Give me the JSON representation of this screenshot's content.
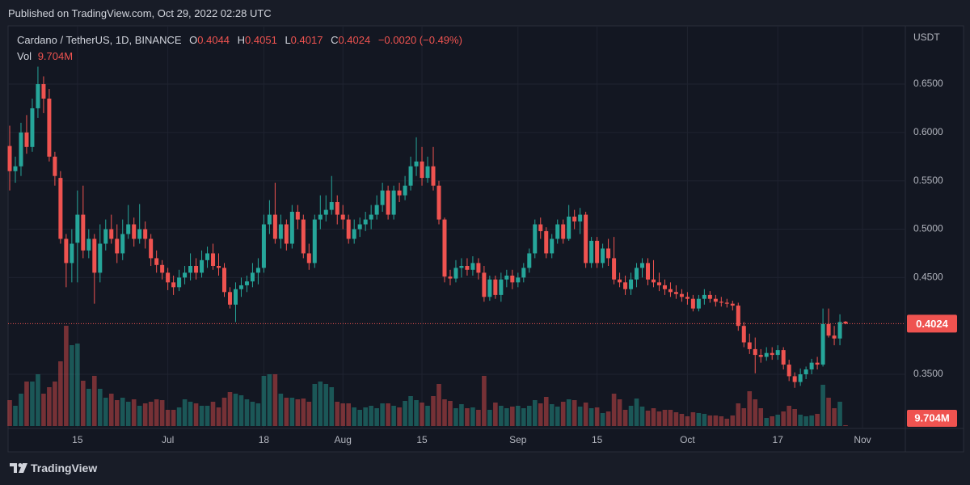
{
  "header": {
    "published": "Published on TradingView.com, Oct 29, 2022 02:28 UTC"
  },
  "footer": {
    "brand": "TradingView"
  },
  "chart_data": {
    "type": "candlestick",
    "title": "Cardano / TetherUS, 1D, BINANCE",
    "y_axis_unit": "USDT",
    "ohlc_labels": [
      "O",
      "H",
      "L",
      "C"
    ],
    "change": "−0.0020 (−0.49%)",
    "up_color": "#26a69a",
    "down_color": "#ef5350",
    "grid": true,
    "ylim": [
      0.2957,
      0.7102
    ],
    "yticks": [
      {
        "value": 0.35,
        "label": "0.3500"
      },
      {
        "value": 0.45,
        "label": "0.4500"
      },
      {
        "value": 0.5,
        "label": "0.5000"
      },
      {
        "value": 0.55,
        "label": "0.5500"
      },
      {
        "value": 0.6,
        "label": "0.6000"
      },
      {
        "value": 0.65,
        "label": "0.6500"
      }
    ],
    "categories": [
      null,
      null,
      null,
      null,
      null,
      null,
      null,
      null,
      null,
      null,
      null,
      null,
      "15",
      null,
      null,
      null,
      null,
      null,
      null,
      null,
      null,
      null,
      null,
      null,
      null,
      null,
      null,
      null,
      "Jul",
      null,
      null,
      null,
      null,
      null,
      null,
      null,
      null,
      null,
      null,
      null,
      null,
      null,
      null,
      null,
      null,
      "18",
      null,
      null,
      null,
      null,
      null,
      null,
      null,
      null,
      null,
      null,
      null,
      null,
      null,
      "Aug",
      null,
      null,
      null,
      null,
      null,
      null,
      null,
      null,
      null,
      null,
      null,
      null,
      null,
      "15",
      null,
      null,
      null,
      null,
      null,
      null,
      null,
      null,
      null,
      null,
      null,
      null,
      null,
      null,
      null,
      null,
      "Sep",
      null,
      null,
      null,
      null,
      null,
      null,
      null,
      null,
      null,
      null,
      null,
      null,
      null,
      "15",
      null,
      null,
      null,
      null,
      null,
      null,
      null,
      null,
      null,
      null,
      null,
      null,
      null,
      null,
      null,
      "Oct",
      null,
      null,
      null,
      null,
      null,
      null,
      null,
      null,
      null,
      null,
      null,
      null,
      null,
      null,
      null,
      "17",
      null,
      null,
      null,
      null,
      null,
      null,
      null,
      null,
      null,
      null,
      null,
      null,
      null,
      null,
      "Nov"
    ],
    "open": [
      0.586,
      0.56,
      0.565,
      0.6,
      0.585,
      0.625,
      0.65,
      0.635,
      0.575,
      0.553,
      0.49,
      0.465,
      0.486,
      0.515,
      0.478,
      0.49,
      0.455,
      0.485,
      0.5,
      0.49,
      0.475,
      0.495,
      0.505,
      0.49,
      0.5,
      0.49,
      0.47,
      0.463,
      0.455,
      0.445,
      0.44,
      0.45,
      0.455,
      0.462,
      0.455,
      0.468,
      0.475,
      0.462,
      0.46,
      0.435,
      0.422,
      0.438,
      0.442,
      0.446,
      0.455,
      0.46,
      0.505,
      0.515,
      0.49,
      0.505,
      0.485,
      0.518,
      0.51,
      0.475,
      0.465,
      0.51,
      0.515,
      0.52,
      0.528,
      0.515,
      0.51,
      0.49,
      0.5,
      0.505,
      0.51,
      0.515,
      0.525,
      0.54,
      0.515,
      0.54,
      0.535,
      0.545,
      0.565,
      0.57,
      0.553,
      0.565,
      0.545,
      0.51,
      0.451,
      0.449,
      0.46,
      0.462,
      0.458,
      0.465,
      0.455,
      0.43,
      0.448,
      0.432,
      0.448,
      0.452,
      0.445,
      0.45,
      0.46,
      0.475,
      0.505,
      0.498,
      0.475,
      0.49,
      0.505,
      0.49,
      0.513,
      0.508,
      0.515,
      0.465,
      0.488,
      0.465,
      0.48,
      0.47,
      0.448,
      0.445,
      0.438,
      0.448,
      0.46,
      0.465,
      0.448,
      0.445,
      0.442,
      0.438,
      0.435,
      0.433,
      0.43,
      0.428,
      0.418,
      0.428,
      0.432,
      0.428,
      0.425,
      0.424,
      0.423,
      0.421,
      0.4,
      0.383,
      0.376,
      0.37,
      0.368,
      0.372,
      0.37,
      0.375,
      0.36,
      0.348,
      0.342,
      0.35,
      0.355,
      0.362,
      0.36,
      0.402,
      0.39,
      0.387,
      0.4044,
      null,
      null,
      null
    ],
    "high": [
      0.607,
      0.575,
      0.61,
      0.618,
      0.635,
      0.668,
      0.658,
      0.645,
      0.58,
      0.56,
      0.495,
      0.5,
      0.54,
      0.545,
      0.5,
      0.495,
      0.505,
      0.51,
      0.515,
      0.505,
      0.51,
      0.525,
      0.512,
      0.526,
      0.508,
      0.495,
      0.478,
      0.468,
      0.46,
      0.452,
      0.458,
      0.462,
      0.475,
      0.47,
      0.478,
      0.482,
      0.485,
      0.475,
      0.465,
      0.44,
      0.445,
      0.45,
      0.452,
      0.465,
      0.47,
      0.515,
      0.53,
      0.548,
      0.515,
      0.51,
      0.525,
      0.525,
      0.515,
      0.485,
      0.515,
      0.535,
      0.535,
      0.555,
      0.535,
      0.525,
      0.515,
      0.51,
      0.512,
      0.518,
      0.525,
      0.535,
      0.548,
      0.545,
      0.545,
      0.548,
      0.555,
      0.575,
      0.595,
      0.585,
      0.575,
      0.585,
      0.55,
      0.512,
      0.458,
      0.468,
      0.47,
      0.47,
      0.472,
      0.47,
      0.462,
      0.452,
      0.452,
      0.455,
      0.458,
      0.458,
      0.455,
      0.465,
      0.48,
      0.51,
      0.512,
      0.502,
      0.495,
      0.51,
      0.51,
      0.525,
      0.52,
      0.522,
      0.518,
      0.492,
      0.492,
      0.485,
      0.49,
      0.492,
      0.455,
      0.452,
      0.455,
      0.465,
      0.47,
      0.47,
      0.468,
      0.455,
      0.448,
      0.445,
      0.442,
      0.438,
      0.435,
      0.432,
      0.432,
      0.438,
      0.436,
      0.432,
      0.43,
      0.428,
      0.426,
      0.424,
      0.404,
      0.392,
      0.388,
      0.376,
      0.378,
      0.378,
      0.38,
      0.378,
      0.365,
      0.352,
      0.356,
      0.358,
      0.366,
      0.368,
      0.418,
      0.418,
      0.4,
      0.412,
      0.4051,
      null,
      null,
      null
    ],
    "low": [
      0.54,
      0.548,
      0.555,
      0.578,
      0.58,
      0.615,
      0.62,
      0.57,
      0.545,
      0.485,
      0.44,
      0.445,
      0.445,
      0.47,
      0.47,
      0.423,
      0.445,
      0.478,
      0.485,
      0.465,
      0.468,
      0.49,
      0.482,
      0.485,
      0.48,
      0.462,
      0.455,
      0.448,
      0.437,
      0.432,
      0.436,
      0.443,
      0.447,
      0.448,
      0.45,
      0.46,
      0.458,
      0.452,
      0.43,
      0.418,
      0.404,
      0.43,
      0.435,
      0.44,
      0.443,
      0.455,
      0.495,
      0.485,
      0.48,
      0.478,
      0.48,
      0.5,
      0.47,
      0.458,
      0.46,
      0.5,
      0.508,
      0.515,
      0.505,
      0.5,
      0.485,
      0.485,
      0.492,
      0.498,
      0.5,
      0.51,
      0.518,
      0.51,
      0.51,
      0.528,
      0.53,
      0.54,
      0.555,
      0.545,
      0.548,
      0.54,
      0.505,
      0.445,
      0.442,
      0.445,
      0.45,
      0.452,
      0.452,
      0.448,
      0.425,
      0.426,
      0.428,
      0.425,
      0.44,
      0.438,
      0.44,
      0.445,
      0.455,
      0.47,
      0.49,
      0.47,
      0.47,
      0.485,
      0.485,
      0.488,
      0.5,
      0.495,
      0.46,
      0.46,
      0.46,
      0.46,
      0.462,
      0.443,
      0.44,
      0.432,
      0.432,
      0.44,
      0.45,
      0.442,
      0.44,
      0.436,
      0.432,
      0.43,
      0.428,
      0.425,
      0.422,
      0.415,
      0.415,
      0.422,
      0.424,
      0.42,
      0.42,
      0.419,
      0.416,
      0.395,
      0.378,
      0.371,
      0.351,
      0.362,
      0.364,
      0.365,
      0.365,
      0.355,
      0.343,
      0.336,
      0.338,
      0.345,
      0.35,
      0.355,
      0.358,
      0.388,
      0.38,
      0.38,
      0.4017,
      null,
      null,
      null
    ],
    "close": [
      0.56,
      0.565,
      0.6,
      0.585,
      0.625,
      0.65,
      0.635,
      0.575,
      0.555,
      0.49,
      0.465,
      0.485,
      0.515,
      0.478,
      0.49,
      0.455,
      0.485,
      0.5,
      0.49,
      0.475,
      0.495,
      0.505,
      0.49,
      0.5,
      0.49,
      0.47,
      0.463,
      0.455,
      0.445,
      0.44,
      0.45,
      0.455,
      0.462,
      0.455,
      0.468,
      0.475,
      0.462,
      0.46,
      0.435,
      0.422,
      0.438,
      0.442,
      0.446,
      0.455,
      0.46,
      0.505,
      0.515,
      0.49,
      0.505,
      0.485,
      0.518,
      0.51,
      0.475,
      0.465,
      0.51,
      0.515,
      0.52,
      0.528,
      0.515,
      0.51,
      0.49,
      0.5,
      0.505,
      0.51,
      0.515,
      0.525,
      0.54,
      0.515,
      0.54,
      0.535,
      0.545,
      0.565,
      0.57,
      0.553,
      0.565,
      0.545,
      0.51,
      0.451,
      0.449,
      0.46,
      0.462,
      0.458,
      0.465,
      0.455,
      0.43,
      0.448,
      0.432,
      0.448,
      0.452,
      0.445,
      0.45,
      0.46,
      0.475,
      0.505,
      0.498,
      0.475,
      0.49,
      0.505,
      0.49,
      0.513,
      0.508,
      0.515,
      0.465,
      0.488,
      0.465,
      0.48,
      0.47,
      0.448,
      0.445,
      0.438,
      0.448,
      0.46,
      0.465,
      0.448,
      0.445,
      0.442,
      0.438,
      0.435,
      0.433,
      0.43,
      0.428,
      0.418,
      0.428,
      0.432,
      0.428,
      0.425,
      0.424,
      0.423,
      0.421,
      0.4,
      0.383,
      0.376,
      0.37,
      0.368,
      0.372,
      0.37,
      0.375,
      0.36,
      0.348,
      0.342,
      0.35,
      0.355,
      0.362,
      0.36,
      0.402,
      0.39,
      0.387,
      0.404,
      0.4024,
      null,
      null,
      null
    ],
    "volume": {
      "name": "Vol",
      "last_label": "9.704M",
      "values": [
        320,
        250,
        400,
        550,
        550,
        640,
        400,
        480,
        550,
        800,
        1240,
        1000,
        1020,
        560,
        460,
        620,
        460,
        350,
        400,
        320,
        350,
        300,
        330,
        250,
        280,
        300,
        330,
        320,
        200,
        200,
        230,
        330,
        300,
        280,
        250,
        250,
        300,
        230,
        350,
        420,
        400,
        380,
        330,
        300,
        280,
        620,
        640,
        640,
        400,
        350,
        350,
        330,
        340,
        300,
        520,
        550,
        520,
        480,
        300,
        280,
        280,
        230,
        200,
        230,
        250,
        220,
        280,
        280,
        250,
        230,
        310,
        370,
        320,
        290,
        250,
        370,
        520,
        330,
        310,
        220,
        270,
        220,
        230,
        200,
        620,
        200,
        290,
        250,
        220,
        240,
        250,
        220,
        250,
        320,
        280,
        360,
        270,
        240,
        300,
        330,
        320,
        240,
        290,
        220,
        230,
        160,
        180,
        400,
        330,
        200,
        250,
        340,
        240,
        190,
        220,
        180,
        200,
        200,
        170,
        150,
        120,
        170,
        160,
        150,
        130,
        130,
        120,
        90,
        130,
        280,
        220,
        430,
        330,
        220,
        100,
        120,
        140,
        180,
        250,
        210,
        140,
        120,
        130,
        150,
        510,
        350,
        220,
        300,
        9.704,
        null,
        null,
        null
      ]
    }
  }
}
